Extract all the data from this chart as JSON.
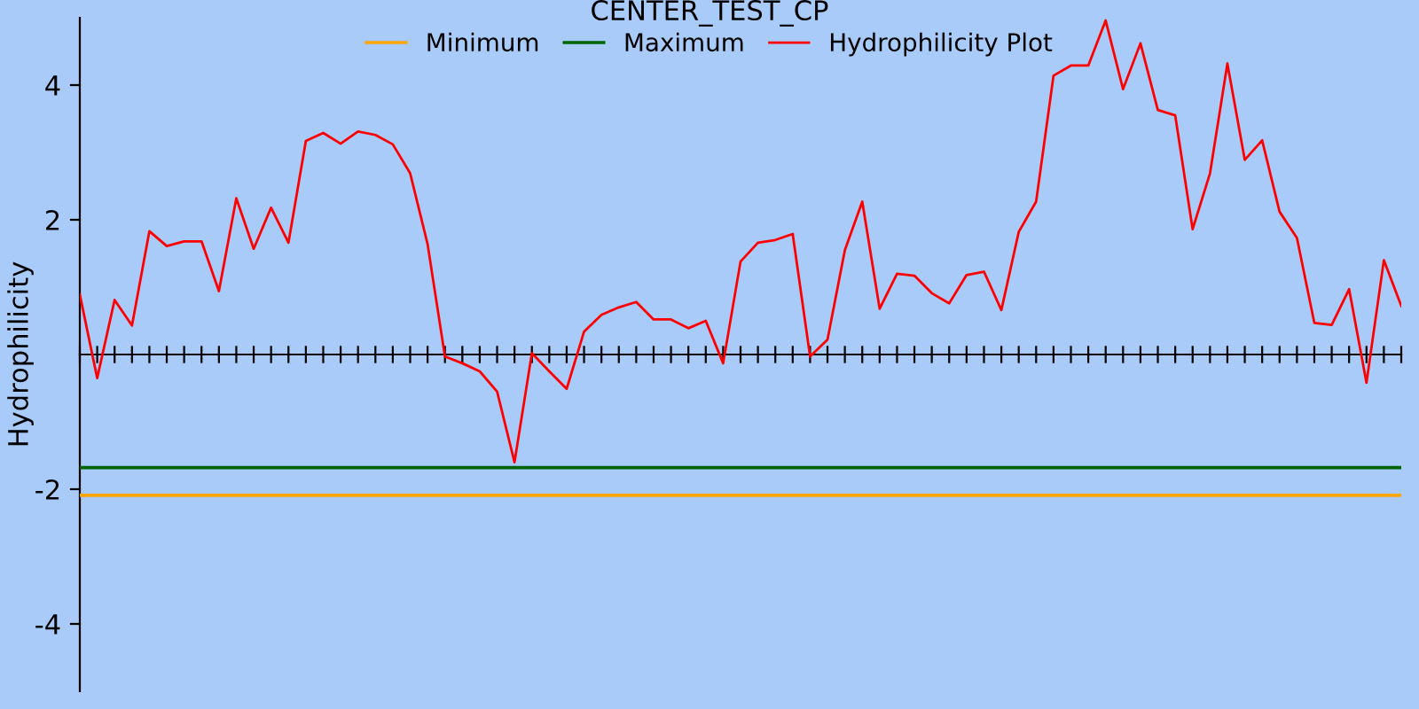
{
  "chart_data": {
    "type": "line",
    "title": "CENTER_TEST_CP",
    "ylabel": "Hydrophilicity",
    "categories": [
      null,
      null,
      null,
      null,
      null,
      null,
      null,
      null,
      null,
      null,
      null,
      null,
      null,
      null,
      null,
      null,
      null,
      null,
      null,
      null,
      null,
      null,
      null,
      null,
      null,
      null,
      null,
      null,
      null,
      null,
      null,
      null,
      null,
      null,
      null,
      null,
      null,
      null,
      null,
      null,
      null,
      null,
      null,
      null,
      null,
      null,
      null,
      null,
      null,
      null,
      null,
      null,
      null,
      null,
      null,
      null,
      null,
      null,
      null,
      null,
      null,
      null,
      null,
      null,
      null,
      null,
      null,
      null,
      null,
      null,
      null,
      null,
      null,
      null,
      null,
      null,
      null
    ],
    "series": [
      {
        "name": "Minimum",
        "color": "#ffa500",
        "values": [
          -2.09,
          -2.09,
          -2.09,
          -2.09,
          -2.09,
          -2.09,
          -2.09,
          -2.09,
          -2.09,
          -2.09,
          -2.09,
          -2.09,
          -2.09,
          -2.09,
          -2.09,
          -2.09,
          -2.09,
          -2.09,
          -2.09,
          -2.09,
          -2.09,
          -2.09,
          -2.09,
          -2.09,
          -2.09,
          -2.09,
          -2.09,
          -2.09,
          -2.09,
          -2.09,
          -2.09,
          -2.09,
          -2.09,
          -2.09,
          -2.09,
          -2.09,
          -2.09,
          -2.09,
          -2.09,
          -2.09,
          -2.09,
          -2.09,
          -2.09,
          -2.09,
          -2.09,
          -2.09,
          -2.09,
          -2.09,
          -2.09,
          -2.09,
          -2.09,
          -2.09,
          -2.09,
          -2.09,
          -2.09,
          -2.09,
          -2.09,
          -2.09,
          -2.09,
          -2.09,
          -2.09,
          -2.09,
          -2.09,
          -2.09,
          -2.09,
          -2.09,
          -2.09,
          -2.09,
          -2.09,
          -2.09,
          -2.09,
          -2.09,
          -2.09,
          -2.09,
          -2.09,
          -2.09,
          -2.09
        ]
      },
      {
        "name": "Maximum",
        "color": "#006400",
        "values": [
          -1.68,
          -1.68,
          -1.68,
          -1.68,
          -1.68,
          -1.68,
          -1.68,
          -1.68,
          -1.68,
          -1.68,
          -1.68,
          -1.68,
          -1.68,
          -1.68,
          -1.68,
          -1.68,
          -1.68,
          -1.68,
          -1.68,
          -1.68,
          -1.68,
          -1.68,
          -1.68,
          -1.68,
          -1.68,
          -1.68,
          -1.68,
          -1.68,
          -1.68,
          -1.68,
          -1.68,
          -1.68,
          -1.68,
          -1.68,
          -1.68,
          -1.68,
          -1.68,
          -1.68,
          -1.68,
          -1.68,
          -1.68,
          -1.68,
          -1.68,
          -1.68,
          -1.68,
          -1.68,
          -1.68,
          -1.68,
          -1.68,
          -1.68,
          -1.68,
          -1.68,
          -1.68,
          -1.68,
          -1.68,
          -1.68,
          -1.68,
          -1.68,
          -1.68,
          -1.68,
          -1.68,
          -1.68,
          -1.68,
          -1.68,
          -1.68,
          -1.68,
          -1.68,
          -1.68,
          -1.68,
          -1.68,
          -1.68,
          -1.68,
          -1.68,
          -1.68,
          -1.68,
          -1.68,
          -1.68
        ]
      },
      {
        "name": "Hydrophilicity Plot",
        "color": "#ff0000",
        "values": [
          0.89,
          -0.35,
          0.81,
          0.43,
          1.83,
          1.61,
          1.68,
          1.68,
          0.94,
          2.32,
          1.57,
          2.18,
          1.66,
          3.17,
          3.29,
          3.13,
          3.31,
          3.26,
          3.12,
          2.69,
          1.64,
          -0.03,
          -0.13,
          -0.25,
          -0.55,
          -1.6,
          0.02,
          -0.25,
          -0.51,
          0.34,
          0.59,
          0.7,
          0.78,
          0.52,
          0.52,
          0.39,
          0.5,
          -0.13,
          1.38,
          1.66,
          1.7,
          1.79,
          -0.03,
          0.22,
          1.55,
          2.27,
          0.68,
          1.2,
          1.17,
          0.91,
          0.76,
          1.18,
          1.23,
          0.66,
          1.82,
          2.27,
          4.14,
          4.29,
          4.29,
          4.96,
          3.94,
          4.62,
          3.63,
          3.55,
          1.86,
          2.69,
          4.32,
          2.89,
          3.18,
          2.12,
          1.73,
          0.47,
          0.44,
          0.97,
          -0.42,
          1.4,
          0.72
        ]
      }
    ],
    "ylim": [
      -5,
      5
    ],
    "yticks": [
      4,
      2,
      -2,
      -4
    ],
    "tick_labels": "y",
    "grid": false,
    "legend": "top",
    "marker": "none",
    "line_style": "solid"
  }
}
